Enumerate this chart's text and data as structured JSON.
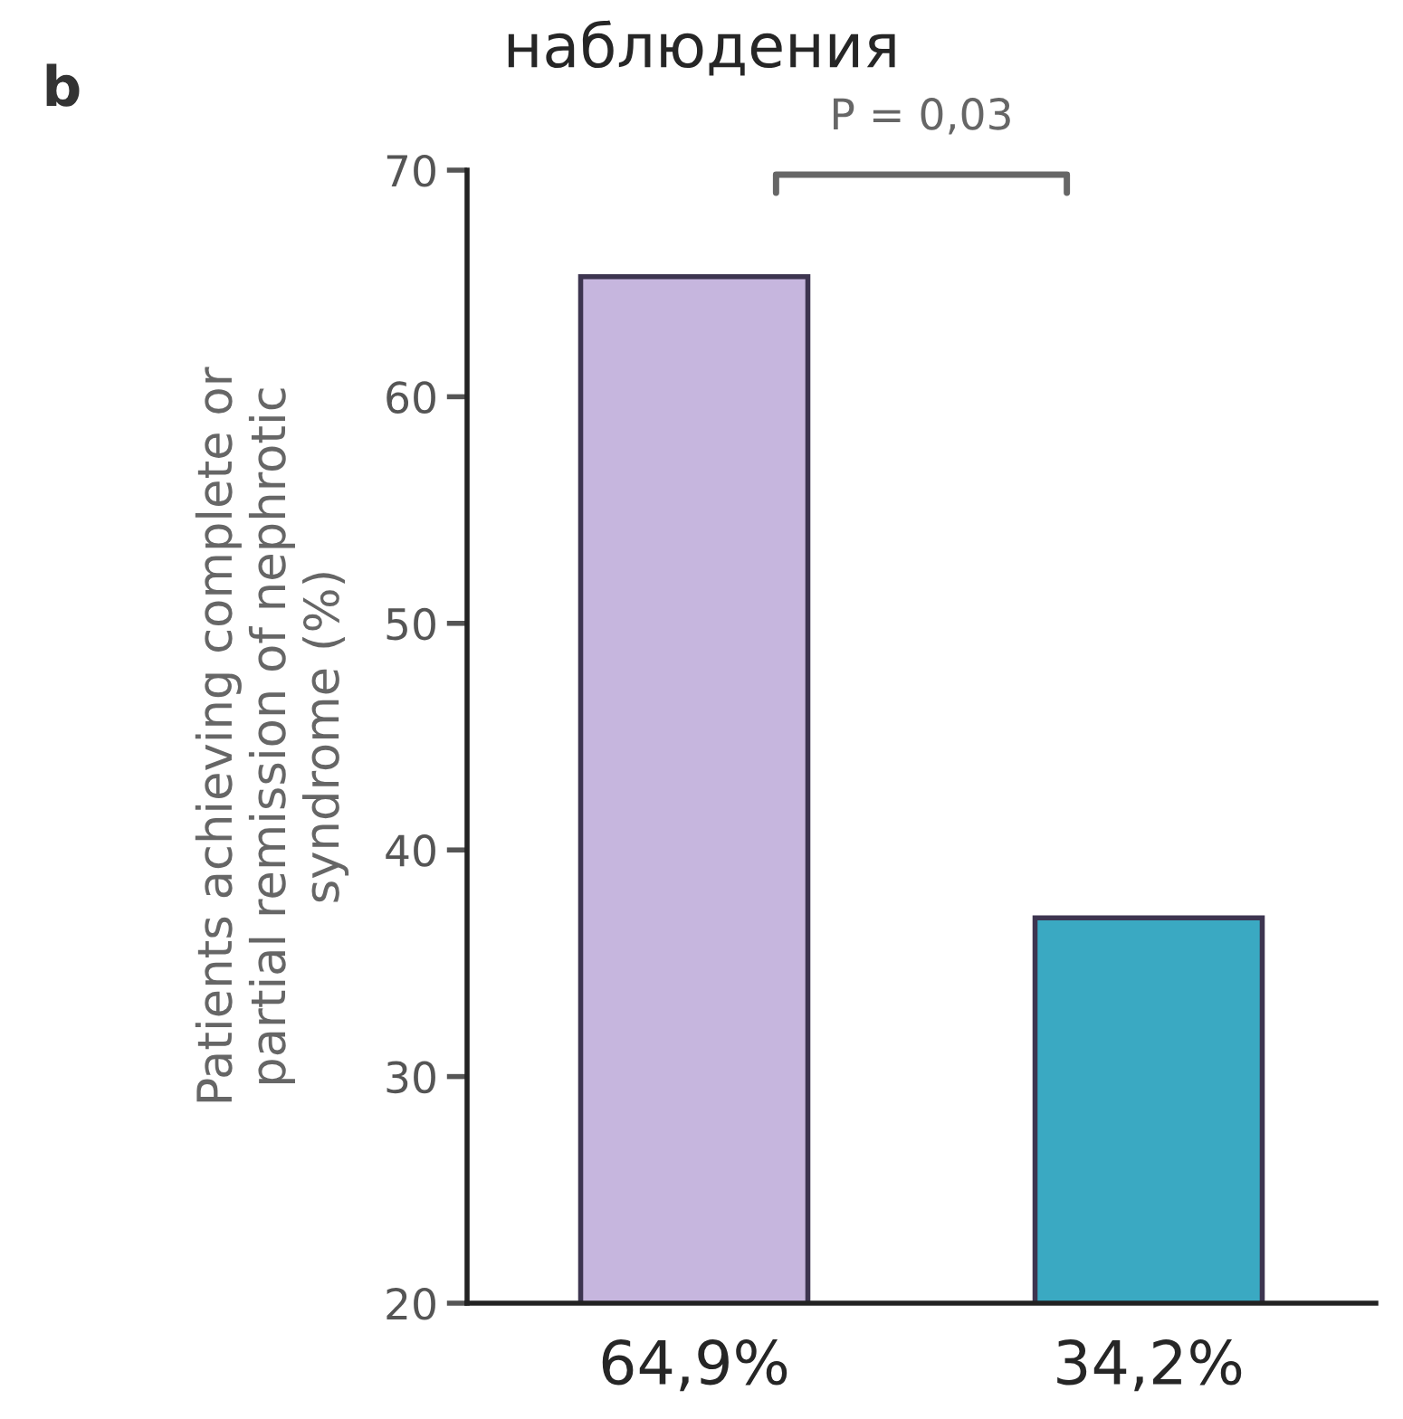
{
  "chart_data": {
    "type": "bar",
    "title": "наблюдения",
    "ylabel": "Patients achieving complete or\npartial remission of nephrotic\nsyndrome (%)",
    "categories": [
      "64,9%",
      "34,2%"
    ],
    "values": [
      65.3,
      37.0
    ],
    "colors": [
      "#c6b6de",
      "#3aa9c2"
    ],
    "ylim": [
      20,
      70
    ],
    "yticks": [
      20,
      30,
      40,
      50,
      60,
      70
    ],
    "grid": false,
    "annotations": [
      "b",
      "P = 0,03"
    ]
  }
}
